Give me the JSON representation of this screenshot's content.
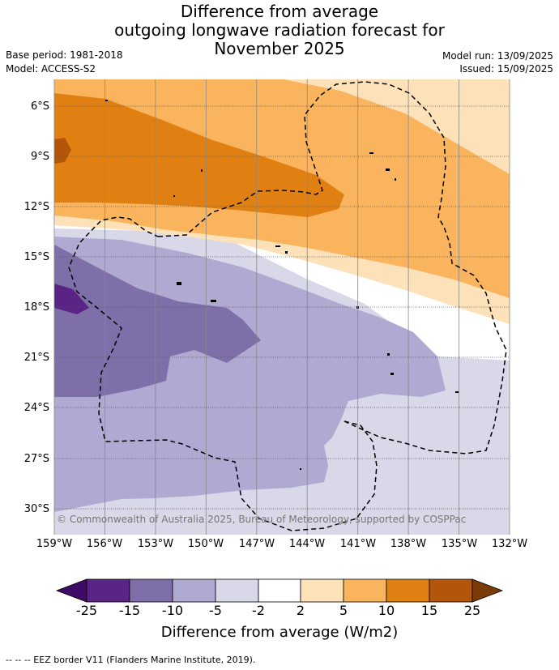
{
  "title": {
    "line1": "Difference from average",
    "line2": "outgoing longwave radiation forecast for",
    "line3": "November 2025"
  },
  "meta": {
    "base_period": "Base period: 1981-2018",
    "model": "Model: ACCESS-S2",
    "model_run": "Model run: 13/09/2025",
    "issued": "Issued: 15/09/2025"
  },
  "map": {
    "lat_labels": [
      "6°S",
      "9°S",
      "12°S",
      "15°S",
      "18°S",
      "21°S",
      "24°S",
      "27°S",
      "30°S"
    ],
    "lon_labels": [
      "159°W",
      "156°W",
      "153°W",
      "150°W",
      "147°W",
      "144°W",
      "141°W",
      "138°W",
      "135°W",
      "132°W"
    ],
    "copyright": "© Commonwealth of Australia 2025, Bureau of Meteorology, supported by COSPPac",
    "border_style": "dashed"
  },
  "colorbar": {
    "title": "Difference from average (W/m2)",
    "tick_labels": [
      "-25",
      "-15",
      "-10",
      "-5",
      "-2",
      "2",
      "5",
      "10",
      "15",
      "25"
    ],
    "colors": [
      "#3f0a68",
      "#5a2386",
      "#7f6fa9",
      "#b0aad2",
      "#d8d8e8",
      "#ffffff",
      "#fde1b8",
      "#fab45e",
      "#e08013",
      "#b3560a",
      "#7b3b06"
    ]
  },
  "footer": "--  --  -- EEZ border V11 (Flanders Marine Institute, 2019)."
}
